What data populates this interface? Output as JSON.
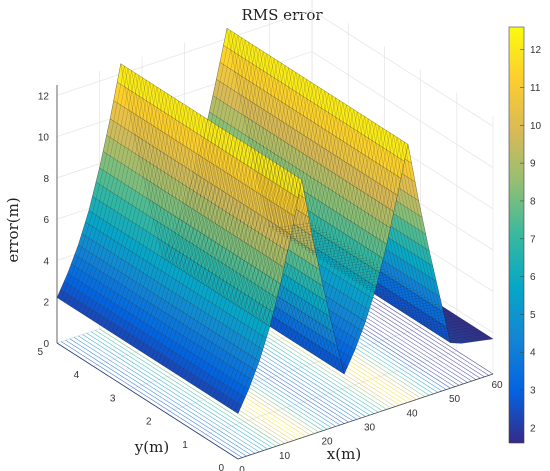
{
  "chart_data": {
    "type": "surface3d",
    "title": "RMS error",
    "xlabel": "x(m)",
    "ylabel": "y(m)",
    "zlabel": "error(m)",
    "xlim": [
      0,
      60
    ],
    "ylim": [
      0,
      5
    ],
    "zlim": [
      0,
      12.5
    ],
    "xticks": [
      0,
      10,
      20,
      30,
      40,
      50,
      60
    ],
    "yticks": [
      0,
      1,
      2,
      3,
      4,
      5
    ],
    "zticks": [
      0,
      2,
      4,
      6,
      8,
      10,
      12
    ],
    "surface_profile_x": [
      0,
      2.5,
      5,
      7.5,
      10,
      12.5,
      15,
      17.5,
      20,
      22.5,
      25,
      27.5,
      30,
      32.5,
      35,
      37.5,
      40,
      42.5,
      45,
      47.5,
      50,
      52.5,
      55,
      57.5,
      60
    ],
    "surface_profile_error": [
      2.2,
      3.2,
      4.4,
      5.9,
      7.8,
      10.0,
      12.5,
      9.6,
      7.0,
      4.6,
      2.4,
      3.4,
      4.6,
      6.1,
      8.0,
      10.2,
      12.5,
      9.6,
      7.0,
      4.6,
      2.2,
      2.0,
      1.9,
      1.8,
      1.7
    ],
    "surface_varies_along": "x",
    "colorbar": {
      "ticks": [
        2,
        3,
        4,
        5,
        6,
        7,
        8,
        9,
        10,
        11,
        12
      ],
      "range": [
        1.6,
        12.6
      ],
      "colormap": "parula"
    },
    "grid": true
  }
}
